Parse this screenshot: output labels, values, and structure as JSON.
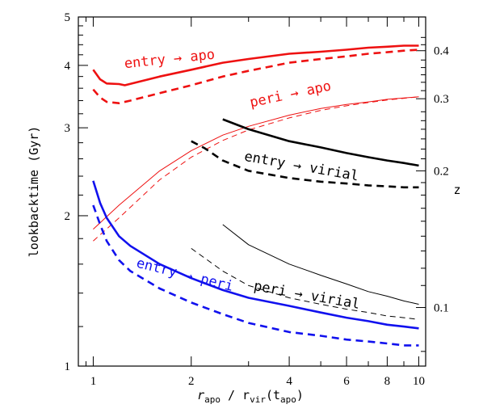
{
  "chart_data": {
    "type": "line",
    "xlabel_main": "r",
    "xlabel_sub1": "apo",
    "xlabel_mid": " / r",
    "xlabel_sub2": "vir",
    "xlabel_tail1": "(t",
    "xlabel_sub3": "apo",
    "xlabel_tail2": ")",
    "ylabel": "lookbacktime (Gyr)",
    "ylabel_right": "z",
    "xscale": "log",
    "yscale": "log",
    "xlim": [
      0.9,
      10.5
    ],
    "ylim": [
      1,
      5
    ],
    "x_ticks": [
      1,
      2,
      4,
      6,
      8,
      10
    ],
    "y_ticks": [
      1,
      2,
      3,
      4,
      5
    ],
    "right_ticks": [
      {
        "label": "0.4",
        "t": 4.28
      },
      {
        "label": "0.3",
        "t": 3.43
      },
      {
        "label": "0.2",
        "t": 2.46
      },
      {
        "label": "0.1",
        "t": 1.31
      }
    ],
    "grid": false,
    "legend": "none",
    "colors": {
      "red": "#ee1111",
      "black": "#000000",
      "blue": "#1111ee"
    },
    "annotations": [
      {
        "text": "entry → apo",
        "color": "#ee1111",
        "x": 1.25,
        "y": 3.95,
        "angle": -6
      },
      {
        "text": "peri → apo",
        "color": "#ee1111",
        "x": 3.05,
        "y": 3.3,
        "angle": -12
      },
      {
        "text": "entry → virial",
        "color": "#000000",
        "x": 2.9,
        "y": 2.58,
        "angle": 10
      },
      {
        "text": "peri → virial",
        "color": "#000000",
        "x": 3.1,
        "y": 1.42,
        "angle": 10
      },
      {
        "text": "entry → peri",
        "color": "#1111ee",
        "x": 1.35,
        "y": 1.58,
        "angle": 14
      }
    ],
    "series": [
      {
        "color": "red",
        "style": "solid",
        "width": 2.6,
        "x": [
          1.0,
          1.05,
          1.1,
          1.2,
          1.25,
          1.6,
          2.0,
          2.5,
          3.0,
          4.0,
          5.0,
          6.0,
          7.0,
          8.0,
          9.0,
          10.0
        ],
        "y": [
          3.92,
          3.75,
          3.68,
          3.67,
          3.65,
          3.8,
          3.92,
          4.05,
          4.12,
          4.22,
          4.26,
          4.3,
          4.34,
          4.36,
          4.38,
          4.38
        ]
      },
      {
        "color": "red",
        "style": "dashed",
        "width": 2.6,
        "x": [
          1.0,
          1.05,
          1.1,
          1.2,
          1.3,
          1.6,
          2.0,
          2.5,
          3.0,
          4.0,
          5.0,
          6.0,
          7.0,
          8.0,
          9.0,
          10.0
        ],
        "y": [
          3.58,
          3.45,
          3.38,
          3.36,
          3.4,
          3.52,
          3.65,
          3.8,
          3.9,
          4.05,
          4.12,
          4.17,
          4.22,
          4.25,
          4.28,
          4.3
        ]
      },
      {
        "color": "red",
        "style": "solid",
        "width": 1.0,
        "x": [
          1.0,
          1.2,
          1.6,
          2.0,
          2.5,
          3.0,
          4.0,
          5.0,
          6.0,
          7.0,
          8.0,
          10.0
        ],
        "y": [
          1.88,
          2.1,
          2.46,
          2.7,
          2.9,
          3.02,
          3.18,
          3.28,
          3.34,
          3.38,
          3.42,
          3.46
        ]
      },
      {
        "color": "red",
        "style": "dashed",
        "width": 1.0,
        "x": [
          1.0,
          1.2,
          1.6,
          2.0,
          2.5,
          3.0,
          4.0,
          5.0,
          6.0,
          7.0,
          8.0,
          10.0
        ],
        "y": [
          1.78,
          1.98,
          2.36,
          2.62,
          2.83,
          2.97,
          3.14,
          3.25,
          3.32,
          3.37,
          3.41,
          3.46
        ]
      },
      {
        "color": "black",
        "style": "solid",
        "width": 2.6,
        "x": [
          2.5,
          3.0,
          4.0,
          5.0,
          6.0,
          7.0,
          8.0,
          9.0,
          10.0
        ],
        "y": [
          3.12,
          2.98,
          2.82,
          2.74,
          2.67,
          2.62,
          2.58,
          2.55,
          2.52
        ]
      },
      {
        "color": "black",
        "style": "dashed",
        "width": 2.6,
        "x": [
          2.0,
          2.2,
          2.5,
          3.0,
          4.0,
          5.0,
          6.0,
          7.0,
          8.0,
          9.0,
          10.0
        ],
        "y": [
          2.82,
          2.73,
          2.58,
          2.46,
          2.38,
          2.34,
          2.32,
          2.3,
          2.29,
          2.28,
          2.28
        ]
      },
      {
        "color": "black",
        "style": "solid",
        "width": 1.0,
        "x": [
          2.5,
          3.0,
          4.0,
          5.0,
          6.0,
          7.0,
          8.0,
          9.0,
          10.0
        ],
        "y": [
          1.92,
          1.75,
          1.6,
          1.52,
          1.46,
          1.41,
          1.38,
          1.35,
          1.33
        ]
      },
      {
        "color": "black",
        "style": "dashed",
        "width": 1.0,
        "x": [
          2.0,
          2.5,
          3.0,
          4.0,
          5.0,
          6.0,
          7.0,
          8.0,
          9.0,
          10.0
        ],
        "y": [
          1.72,
          1.55,
          1.45,
          1.37,
          1.33,
          1.3,
          1.28,
          1.26,
          1.25,
          1.24
        ]
      },
      {
        "color": "blue",
        "style": "solid",
        "width": 2.6,
        "x": [
          1.0,
          1.05,
          1.1,
          1.2,
          1.3,
          1.6,
          2.0,
          2.5,
          3.0,
          4.0,
          5.0,
          6.0,
          7.0,
          8.0,
          9.0,
          10.0
        ],
        "y": [
          2.35,
          2.12,
          1.98,
          1.82,
          1.74,
          1.6,
          1.5,
          1.42,
          1.37,
          1.32,
          1.28,
          1.25,
          1.23,
          1.21,
          1.2,
          1.19
        ]
      },
      {
        "color": "blue",
        "style": "dashed",
        "width": 2.6,
        "x": [
          1.0,
          1.05,
          1.1,
          1.2,
          1.3,
          1.6,
          2.0,
          2.5,
          3.0,
          4.0,
          5.0,
          6.0,
          7.0,
          8.0,
          9.0,
          10.0
        ],
        "y": [
          2.1,
          1.92,
          1.78,
          1.63,
          1.55,
          1.43,
          1.34,
          1.27,
          1.22,
          1.17,
          1.15,
          1.13,
          1.12,
          1.11,
          1.1,
          1.1
        ]
      }
    ]
  }
}
